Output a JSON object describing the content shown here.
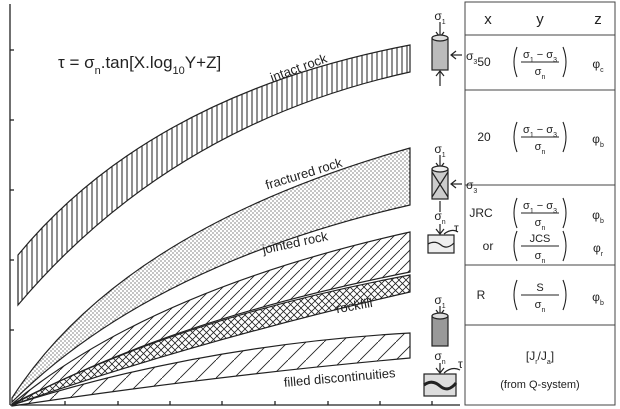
{
  "formula": [
    {
      "t": "τ = σ"
    },
    {
      "sub": "n"
    },
    {
      "t": ".tan[X.log"
    },
    {
      "sub": "10"
    },
    {
      "t": "Y+Z]"
    }
  ],
  "curve_labels": [
    "intact rock",
    "fractured rock",
    "jointed rock",
    "rockfill",
    "filled discontinuities"
  ],
  "stress_labels": [
    [
      {
        "t": "σ"
      },
      {
        "sub": "1"
      }
    ],
    [
      {
        "t": "σ"
      },
      {
        "sub": "3"
      }
    ],
    [
      {
        "t": "σ"
      },
      {
        "sub": "1"
      }
    ],
    [
      {
        "t": "σ"
      },
      {
        "sub": "3"
      }
    ],
    [
      {
        "t": "σ"
      },
      {
        "sub": "n"
      }
    ],
    [
      {
        "t": "τ"
      }
    ],
    [
      {
        "t": "σ"
      },
      {
        "sub": "1"
      }
    ],
    [
      {
        "t": "σ"
      },
      {
        "sub": "n"
      }
    ],
    [
      {
        "t": "τ"
      }
    ]
  ],
  "table": {
    "header": [
      "x",
      "y",
      "z"
    ],
    "rows": [
      {
        "x": "50",
        "num": [
          {
            "t": "σ"
          },
          {
            "sub": "1"
          },
          {
            "t": " − σ"
          },
          {
            "sub": "3"
          }
        ],
        "den": [
          {
            "t": "σ"
          },
          {
            "sub": "n"
          }
        ],
        "z": [
          {
            "t": "φ"
          },
          {
            "sub": "c"
          }
        ]
      },
      {
        "x": "20",
        "num": [
          {
            "t": "σ"
          },
          {
            "sub": "1"
          },
          {
            "t": " − σ"
          },
          {
            "sub": "3"
          }
        ],
        "den": [
          {
            "t": "σ"
          },
          {
            "sub": "n"
          }
        ],
        "z": [
          {
            "t": "φ"
          },
          {
            "sub": "b"
          }
        ]
      },
      {
        "x": "JRC",
        "num": [
          {
            "t": "σ"
          },
          {
            "sub": "1"
          },
          {
            "t": " − σ"
          },
          {
            "sub": "3"
          }
        ],
        "den": [
          {
            "t": "σ"
          },
          {
            "sub": "n"
          }
        ],
        "z": [
          {
            "t": "φ"
          },
          {
            "sub": "b"
          }
        ],
        "alt": {
          "x": "or",
          "num": [
            {
              "t": "JCS"
            }
          ],
          "den": [
            {
              "t": "σ"
            },
            {
              "sub": "n"
            }
          ],
          "z": [
            {
              "t": "φ"
            },
            {
              "sub": "r"
            }
          ]
        }
      },
      {
        "x": "R",
        "num": [
          {
            "t": "S"
          }
        ],
        "den": [
          {
            "t": "σ"
          },
          {
            "sub": "n"
          }
        ],
        "z": [
          {
            "t": "φ"
          },
          {
            "sub": "b"
          }
        ]
      },
      {
        "ratio": [
          {
            "t": "[J"
          },
          {
            "sub": "r"
          },
          {
            "t": "/J"
          },
          {
            "sub": "a"
          },
          {
            "t": "]"
          }
        ],
        "note": "(from Q-system)"
      }
    ]
  }
}
